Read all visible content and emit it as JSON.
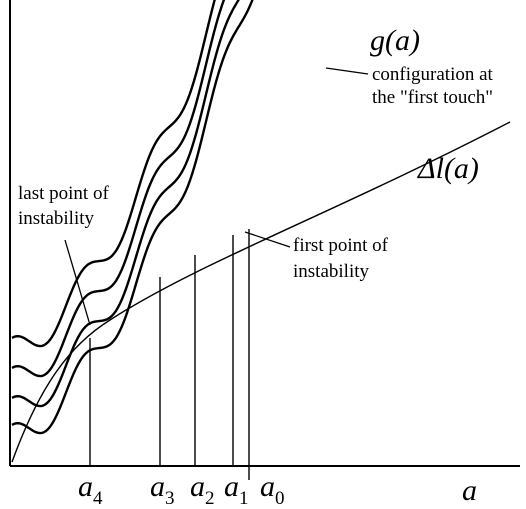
{
  "labels": {
    "g_curve": "g(a)",
    "delta_l_curve": "Δl(a)",
    "x_axis": "a",
    "configuration_line1": "configuration at",
    "configuration_line2": "the \"first touch\"",
    "last_point_line1": "last point of",
    "last_point_line2": "instability",
    "first_point_line1": "first point of",
    "first_point_line2": "instability"
  },
  "ticks": [
    {
      "main": "a",
      "sub": "4"
    },
    {
      "main": "a",
      "sub": "3"
    },
    {
      "main": "a",
      "sub": "2"
    },
    {
      "main": "a",
      "sub": "1"
    },
    {
      "main": "a",
      "sub": "0"
    }
  ]
}
